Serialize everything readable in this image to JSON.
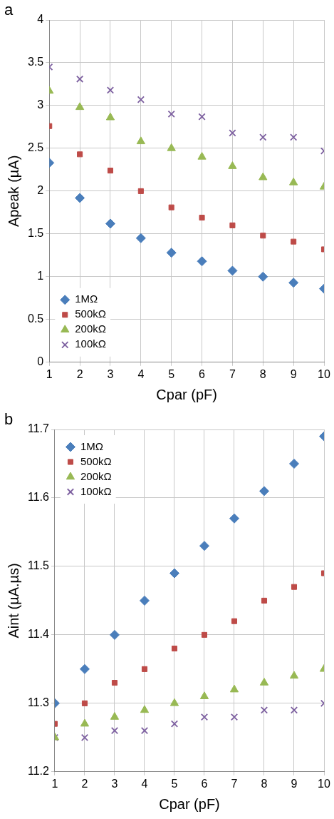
{
  "chart_data": [
    {
      "type": "scatter",
      "title": "a",
      "x_label": "Cpar (pF)",
      "y_label": "Apeak (µA)",
      "x": [
        1,
        2,
        3,
        4,
        5,
        6,
        7,
        8,
        9,
        10
      ],
      "xlim": [
        1,
        10
      ],
      "xticks": [
        1,
        2,
        3,
        4,
        5,
        6,
        7,
        8,
        9,
        10
      ],
      "ylim": [
        0,
        4
      ],
      "yticks": [
        0,
        0.5,
        1,
        1.5,
        2,
        2.5,
        3,
        3.5,
        4
      ],
      "grid": true,
      "legend": "lower left",
      "series": [
        {
          "name": "1MΩ",
          "color": "#4a7ebb",
          "marker": "diamond",
          "values": [
            2.33,
            1.92,
            1.62,
            1.45,
            1.28,
            1.18,
            1.07,
            1.0,
            0.93,
            0.86
          ]
        },
        {
          "name": "500kΩ",
          "color": "#be4b48",
          "marker": "square",
          "values": [
            2.76,
            2.43,
            2.24,
            2.0,
            1.81,
            1.69,
            1.6,
            1.48,
            1.41,
            1.32
          ]
        },
        {
          "name": "200kΩ",
          "color": "#98b954",
          "marker": "triangle",
          "values": [
            3.17,
            2.98,
            2.86,
            2.58,
            2.5,
            2.4,
            2.29,
            2.16,
            2.1,
            2.05
          ]
        },
        {
          "name": "100kΩ",
          "color": "#7d60a0",
          "marker": "x",
          "values": [
            3.45,
            3.31,
            3.18,
            3.07,
            2.9,
            2.87,
            2.68,
            2.63,
            2.63,
            2.47
          ]
        }
      ]
    },
    {
      "type": "scatter",
      "title": "b",
      "x_label": "Cpar (pF)",
      "y_label": "Aint (µA.µs)",
      "x": [
        1,
        2,
        3,
        4,
        5,
        6,
        7,
        8,
        9,
        10
      ],
      "xlim": [
        1,
        10
      ],
      "xticks": [
        1,
        2,
        3,
        4,
        5,
        6,
        7,
        8,
        9,
        10
      ],
      "ylim": [
        11.2,
        11.7
      ],
      "yticks": [
        11.2,
        11.3,
        11.4,
        11.5,
        11.6,
        11.7
      ],
      "grid": true,
      "legend": "upper left",
      "series": [
        {
          "name": "1MΩ",
          "color": "#4a7ebb",
          "marker": "diamond",
          "values": [
            11.3,
            11.35,
            11.4,
            11.45,
            11.49,
            11.53,
            11.57,
            11.61,
            11.65,
            11.69
          ]
        },
        {
          "name": "500kΩ",
          "color": "#be4b48",
          "marker": "square",
          "values": [
            11.27,
            11.3,
            11.33,
            11.35,
            11.38,
            11.4,
            11.42,
            11.45,
            11.47,
            11.49
          ]
        },
        {
          "name": "200kΩ",
          "color": "#98b954",
          "marker": "triangle",
          "values": [
            11.25,
            11.27,
            11.28,
            11.29,
            11.3,
            11.31,
            11.32,
            11.33,
            11.34,
            11.35
          ]
        },
        {
          "name": "100kΩ",
          "color": "#7d60a0",
          "marker": "x",
          "values": [
            11.25,
            11.25,
            11.26,
            11.26,
            11.27,
            11.28,
            11.28,
            11.29,
            11.29,
            11.3
          ]
        }
      ]
    }
  ]
}
